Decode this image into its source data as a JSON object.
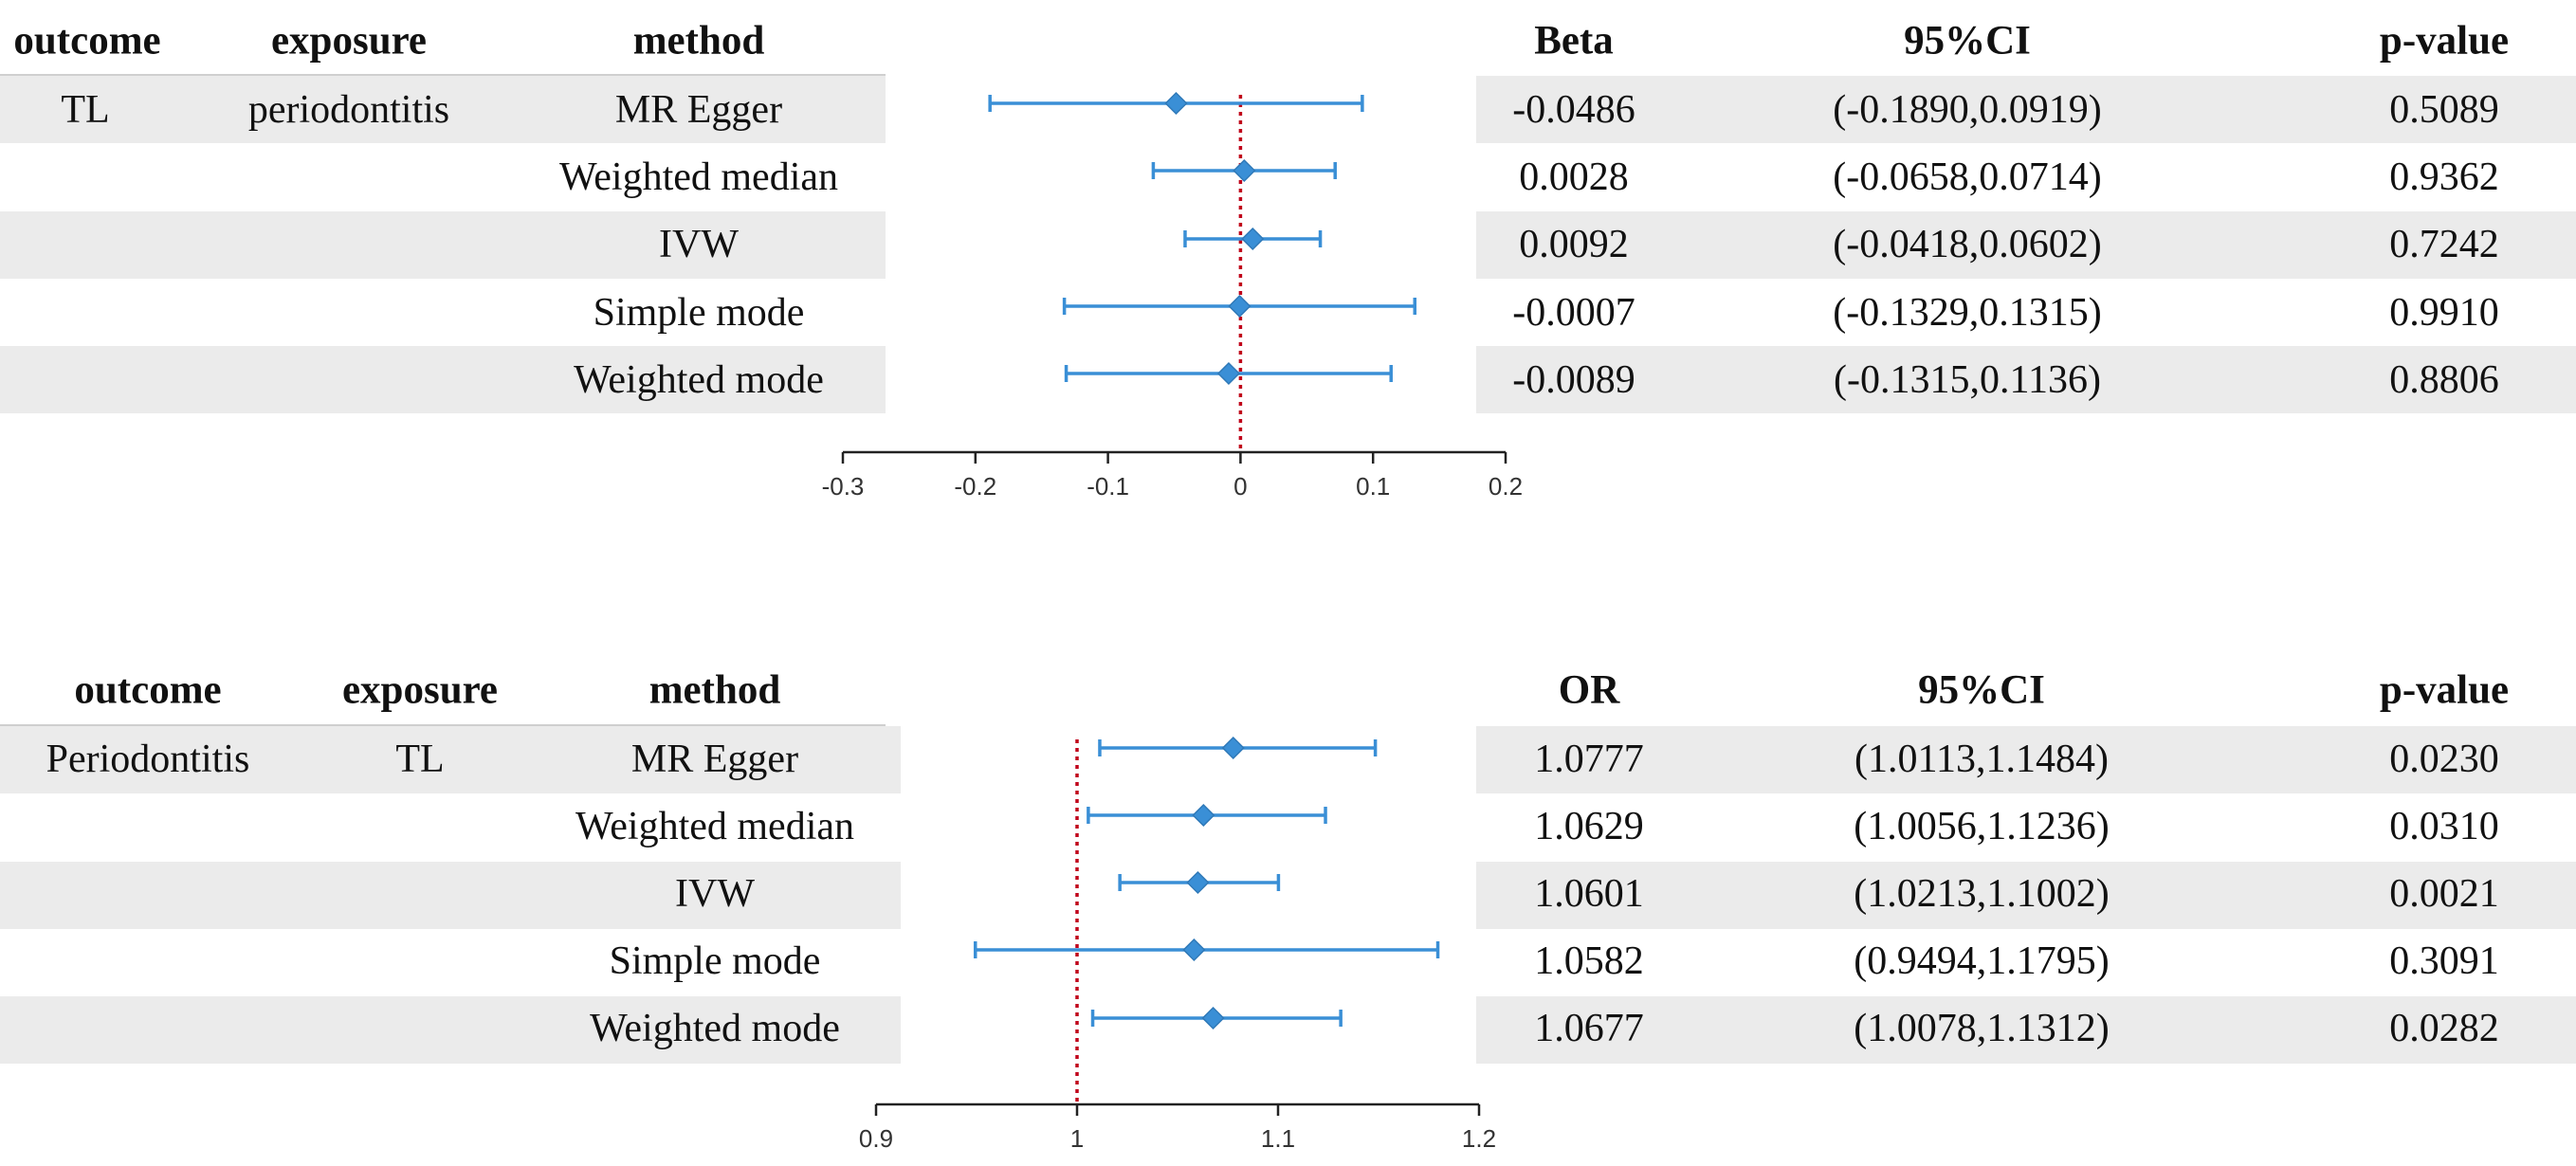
{
  "colors": {
    "accent": "#3a8fd6",
    "ref_line": "#c0001a",
    "band": "#ebebeb"
  },
  "chart_data": [
    {
      "type": "forest",
      "headers": {
        "outcome": "outcome",
        "exposure": "exposure",
        "method": "method",
        "estimate": "Beta",
        "ci": "95%CI",
        "p": "p-value"
      },
      "outcome": "TL",
      "exposure": "periodontitis",
      "rows": [
        {
          "method": "MR Egger",
          "est": -0.0486,
          "lo": -0.189,
          "hi": 0.0919,
          "est_text": "-0.0486",
          "ci_text": "(-0.1890,0.0919)",
          "p_text": "0.5089"
        },
        {
          "method": "Weighted median",
          "est": 0.0028,
          "lo": -0.0658,
          "hi": 0.0714,
          "est_text": "0.0028",
          "ci_text": "(-0.0658,0.0714)",
          "p_text": "0.9362"
        },
        {
          "method": "IVW",
          "est": 0.0092,
          "lo": -0.0418,
          "hi": 0.0602,
          "est_text": "0.0092",
          "ci_text": "(-0.0418,0.0602)",
          "p_text": "0.7242"
        },
        {
          "method": "Simple mode",
          "est": -0.0007,
          "lo": -0.1329,
          "hi": 0.1315,
          "est_text": "-0.0007",
          "ci_text": "(-0.1329,0.1315)",
          "p_text": "0.9910"
        },
        {
          "method": "Weighted mode",
          "est": -0.0089,
          "lo": -0.1315,
          "hi": 0.1136,
          "est_text": "-0.0089",
          "ci_text": "(-0.1315,0.1136)",
          "p_text": "0.8806"
        }
      ],
      "xlim": [
        -0.3,
        0.2
      ],
      "ticks": [
        -0.3,
        -0.2,
        -0.1,
        0,
        0.1,
        0.2
      ],
      "tick_labels": [
        "-0.3",
        "-0.2",
        "-0.1",
        "0",
        "0.1",
        "0.2"
      ],
      "ref_value": 0
    },
    {
      "type": "forest",
      "headers": {
        "outcome": "outcome",
        "exposure": "exposure",
        "method": "method",
        "estimate": "OR",
        "ci": "95%CI",
        "p": "p-value"
      },
      "outcome": "Periodontitis",
      "exposure": "TL",
      "rows": [
        {
          "method": "MR Egger",
          "est": 1.0777,
          "lo": 1.0113,
          "hi": 1.1484,
          "est_text": "1.0777",
          "ci_text": "(1.0113,1.1484)",
          "p_text": "0.0230"
        },
        {
          "method": "Weighted median",
          "est": 1.0629,
          "lo": 1.0056,
          "hi": 1.1236,
          "est_text": "1.0629",
          "ci_text": "(1.0056,1.1236)",
          "p_text": "0.0310"
        },
        {
          "method": "IVW",
          "est": 1.0601,
          "lo": 1.0213,
          "hi": 1.1002,
          "est_text": "1.0601",
          "ci_text": "(1.0213,1.1002)",
          "p_text": "0.0021"
        },
        {
          "method": "Simple mode",
          "est": 1.0582,
          "lo": 0.9494,
          "hi": 1.1795,
          "est_text": "1.0582",
          "ci_text": "(0.9494,1.1795)",
          "p_text": "0.3091"
        },
        {
          "method": "Weighted mode",
          "est": 1.0677,
          "lo": 1.0078,
          "hi": 1.1312,
          "est_text": "1.0677",
          "ci_text": "(1.0078,1.1312)",
          "p_text": "0.0282"
        }
      ],
      "xlim": [
        0.9,
        1.2
      ],
      "ticks": [
        0.9,
        1,
        1.1,
        1.2
      ],
      "tick_labels": [
        "0.9",
        "1",
        "1.1",
        "1.2"
      ],
      "ref_value": 1
    }
  ]
}
